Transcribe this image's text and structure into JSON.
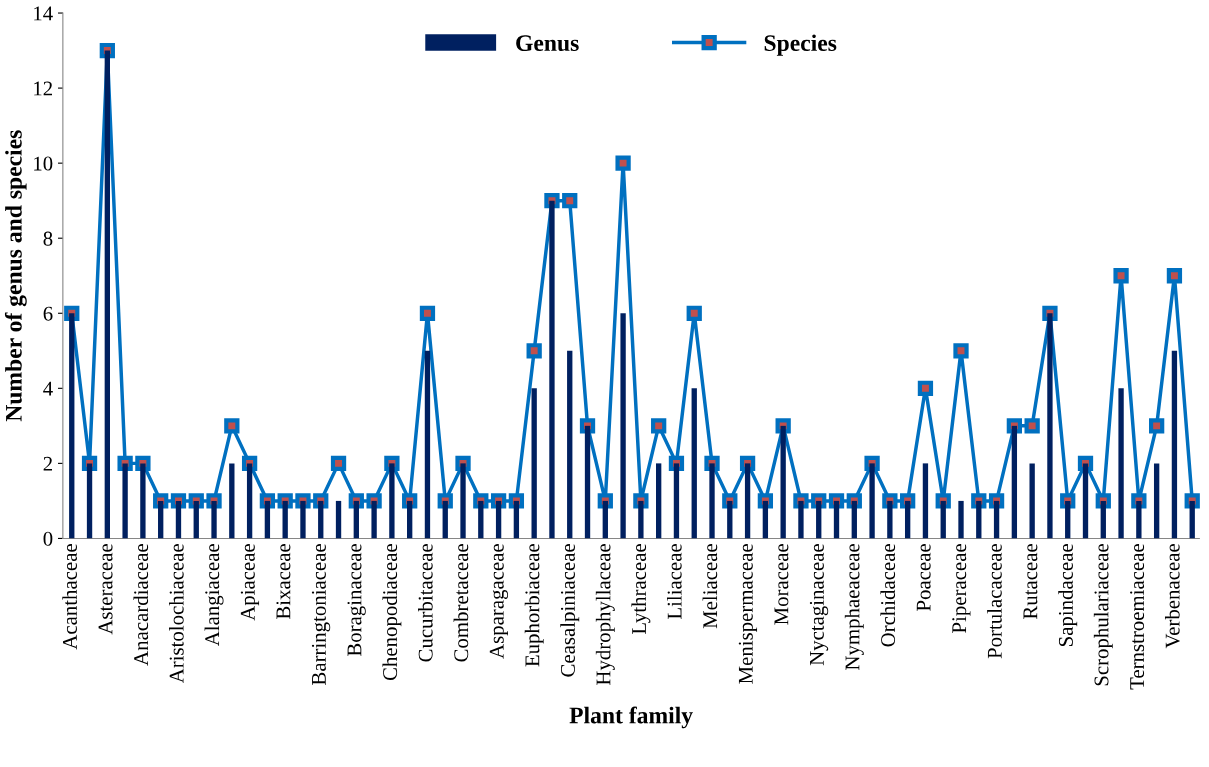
{
  "chart_data": {
    "type": "bar",
    "xlabel": "Plant family",
    "ylabel": "Number of genus and species",
    "categories": [
      "Acanthaceae",
      null,
      "Asteraceae",
      null,
      "Anacardiaceae",
      null,
      "Aristolochiaceae",
      null,
      "Alangiaceae",
      null,
      "Apiaceae",
      null,
      "Bixaceae",
      null,
      "Barringtoniaceae",
      null,
      "Boraginaceae",
      null,
      "Chenopodiaceae",
      null,
      "Cucurbitaceae",
      null,
      "Combretaceae",
      null,
      "Asparagaceae",
      null,
      "Euphorbiaceae",
      null,
      "Ceasalpiniaceae",
      null,
      "Hydrophyllaceae",
      null,
      "Lythraceae",
      null,
      "Liliaceae",
      null,
      "Meliaceae",
      null,
      "Menispermaceae",
      null,
      "Moraceae",
      null,
      "Nyctaginaceae",
      null,
      "Nymphaeaceae",
      null,
      "Orchidaceae",
      null,
      "Poaceae",
      null,
      "Piperaceae",
      null,
      "Portulacaceae",
      null,
      "Rutaceae",
      null,
      "Sapindaceae",
      null,
      "Scrophulariaceae",
      null,
      "Ternstroemiaceae",
      null,
      "Verbenaceae",
      null
    ],
    "series": [
      {
        "name": "Genus",
        "color": "#002060",
        "values": [
          6,
          2,
          13,
          2,
          2,
          1,
          1,
          1,
          1,
          2,
          2,
          1,
          1,
          1,
          1,
          1,
          1,
          1,
          2,
          1,
          5,
          1,
          2,
          1,
          1,
          1,
          4,
          9,
          5,
          3,
          1,
          6,
          1,
          2,
          2,
          4,
          2,
          1,
          2,
          1,
          3,
          1,
          1,
          1,
          1,
          2,
          1,
          1,
          2,
          1,
          1,
          1,
          1,
          3,
          2,
          6,
          1,
          2,
          1,
          4,
          1,
          2,
          5,
          1
        ]
      },
      {
        "name": "Species",
        "type": "line",
        "color": "#0070c0",
        "marker": "square",
        "line_style": "solid",
        "values": [
          6,
          2,
          13,
          2,
          2,
          1,
          1,
          1,
          1,
          3,
          2,
          1,
          1,
          1,
          1,
          2,
          1,
          1,
          2,
          1,
          6,
          1,
          2,
          1,
          1,
          1,
          5,
          9,
          9,
          3,
          1,
          10,
          1,
          3,
          2,
          6,
          2,
          1,
          2,
          1,
          3,
          1,
          1,
          1,
          1,
          2,
          1,
          1,
          4,
          1,
          5,
          1,
          1,
          3,
          3,
          6,
          1,
          2,
          1,
          7,
          1,
          3,
          7,
          1
        ]
      }
    ],
    "ylim": [
      0,
      14
    ],
    "yticks": [
      0,
      2,
      4,
      6,
      8,
      10,
      12,
      14
    ],
    "grid": false,
    "legend": "top"
  }
}
